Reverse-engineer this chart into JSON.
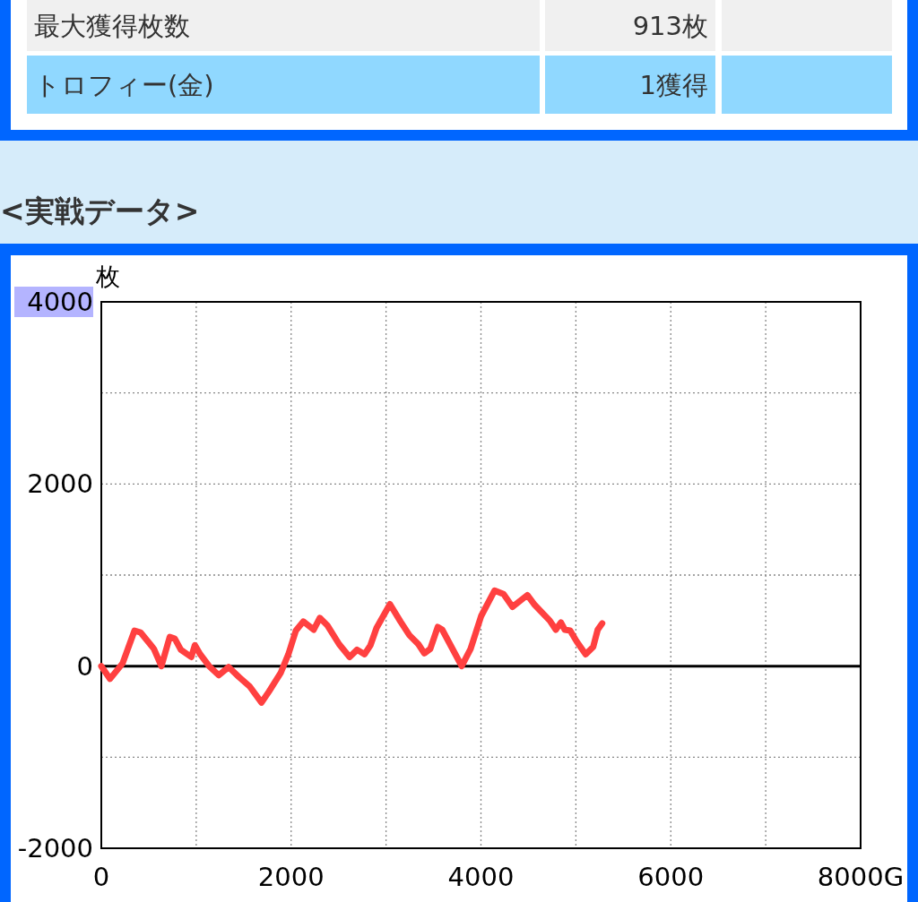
{
  "chart_data": {
    "type": "line",
    "title": "<実戦データ>",
    "ylabel": "枚",
    "annotations": [
      "最大獲得枚数",
      "913枚",
      "トロフィー(金)",
      "1獲得"
    ],
    "xlim": [
      0,
      8000
    ],
    "ylim": [
      -2000,
      4000
    ],
    "xticks": [
      0,
      {
        "value": 1000,
        "label": null
      },
      2000,
      {
        "value": 3000,
        "label": null
      },
      4000,
      {
        "value": 5000,
        "label": null
      },
      6000,
      {
        "value": 7000,
        "label": null
      },
      {
        "value": 8000,
        "label": "8000G"
      }
    ],
    "yticks": [
      -2000,
      {
        "value": -1000,
        "label": null
      },
      0,
      {
        "value": 1000,
        "label": null
      },
      2000,
      {
        "value": 3000,
        "label": null
      },
      4000
    ],
    "grid": true,
    "line_style": "solid",
    "marker": "none",
    "ref_lines": [
      {
        "axis": "y",
        "value": 0,
        "color": "#000000"
      }
    ],
    "series": [
      {
        "color": "#ff4040",
        "x": [
          0,
          92,
          224,
          350,
          413,
          523,
          554,
          633,
          721,
          775,
          838,
          948,
          986,
          1042,
          1136,
          1237,
          1341,
          1451,
          1561,
          1688,
          1766,
          1892,
          1971,
          2050,
          2128,
          2238,
          2302,
          2380,
          2506,
          2616,
          2695,
          2774,
          2836,
          2900,
          3041,
          3152,
          3246,
          3341,
          3403,
          3466,
          3545,
          3592,
          3797,
          3891,
          4002,
          4143,
          4238,
          4332,
          4489,
          4568,
          4725,
          4789,
          4842,
          4883,
          4940,
          5009,
          5103,
          5182,
          5230,
          5277
        ],
        "values": [
          0,
          -140,
          30,
          390,
          370,
          230,
          190,
          0,
          320,
          300,
          180,
          100,
          230,
          130,
          0,
          -100,
          -10,
          -120,
          -220,
          -400,
          -280,
          -70,
          130,
          390,
          490,
          400,
          530,
          450,
          240,
          100,
          180,
          130,
          230,
          420,
          680,
          490,
          340,
          240,
          140,
          190,
          430,
          400,
          0,
          190,
          550,
          830,
          790,
          650,
          780,
          670,
          500,
          400,
          480,
          400,
          390,
          270,
          130,
          210,
          400,
          470
        ]
      }
    ]
  }
}
